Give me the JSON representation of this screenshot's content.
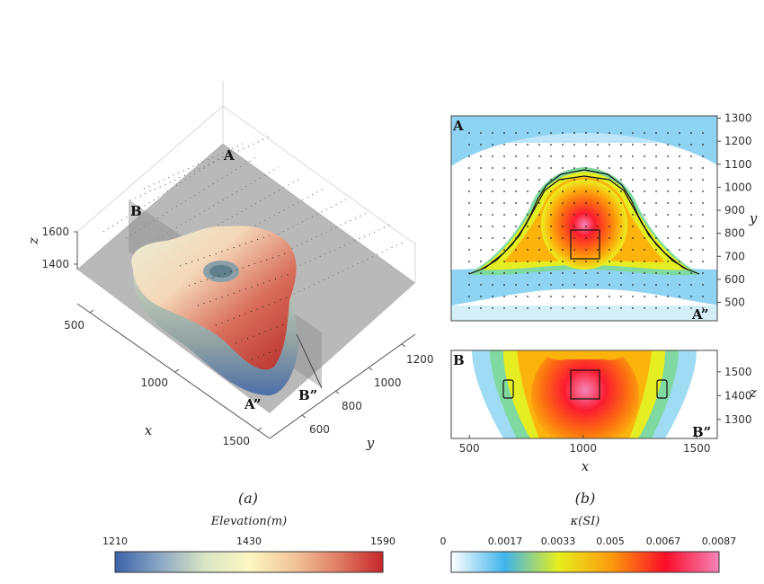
{
  "chart_data": [
    {
      "type": "3d-surface",
      "panel_label": "(a)",
      "xlabel": "x",
      "ylabel": "y",
      "zlabel": "z",
      "x_ticks": [
        "500",
        "1000",
        "1500"
      ],
      "y_ticks": [
        "600",
        "800",
        "1000",
        "1200"
      ],
      "z_ticks": [
        "1400",
        "1600"
      ],
      "section_labels": [
        "A",
        "B",
        "A”",
        "B”"
      ]
    },
    {
      "type": "heatmap",
      "panel_label": "(b)",
      "subplots": [
        {
          "id": "top",
          "corner_labels": [
            "A",
            "A”"
          ],
          "ylabel": "y",
          "xlim": [
            420,
            1590
          ],
          "ylim": [
            420,
            1310
          ],
          "y_ticks": [
            500,
            600,
            700,
            800,
            900,
            1000,
            1100,
            1200,
            1300
          ],
          "y_tick_labels": [
            "500",
            "600",
            "700",
            "800",
            "900",
            "1000",
            "1100",
            "1200",
            "1300"
          ],
          "anomaly_peak": {
            "x": 1000,
            "y": 760,
            "value": 0.0087
          }
        },
        {
          "id": "bottom",
          "corner_labels": [
            "B",
            "B”"
          ],
          "xlabel": "x",
          "ylabel": "z",
          "xlim": [
            420,
            1590
          ],
          "ylim": [
            1220,
            1590
          ],
          "x_ticks": [
            500,
            1000,
            1500
          ],
          "x_tick_labels": [
            "500",
            "1000",
            "1500"
          ],
          "y_ticks": [
            1300,
            1400,
            1500
          ],
          "y_tick_labels": [
            "1300",
            "1400",
            "1500"
          ],
          "anomaly_peak": {
            "x": 1000,
            "z": 1400,
            "value": 0.0087
          }
        }
      ]
    },
    {
      "type": "colorbar",
      "title": "Elevation(m)",
      "tick_labels": [
        "1210",
        "1430",
        "1590"
      ],
      "range": [
        1210,
        1590
      ],
      "colors": [
        "#3b62a8",
        "#8aa6c4",
        "#d8e5c4",
        "#fbf7c2",
        "#f2c59a",
        "#e07d65",
        "#c6262a"
      ]
    },
    {
      "type": "colorbar",
      "title": "κ(SI)",
      "tick_labels": [
        "0",
        "0.0017",
        "0.0033",
        "0.005",
        "0.0067",
        "0.0087"
      ],
      "range": [
        0,
        0.0087
      ],
      "colors": [
        "#ffffff",
        "#3fb4ec",
        "#e6ee1e",
        "#fc9a0c",
        "#fb0d28",
        "#f484b8"
      ]
    }
  ]
}
